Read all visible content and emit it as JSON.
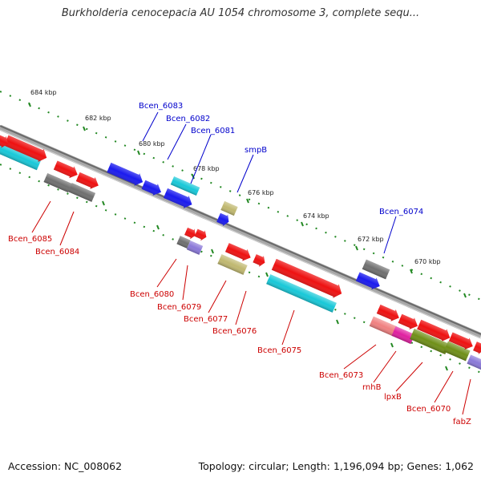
{
  "title": "Burkholderia cenocepacia AU 1054 chromosome 3, complete sequ...",
  "footer": {
    "accession": "Accession: NC_008062",
    "summary": "Topology: circular; Length: 1,196,094 bp; Genes: 1,062"
  },
  "colors": {
    "backbone": "#8a8a8a",
    "ruler": "#228822",
    "forward_label": "#0000cc",
    "reverse_label": "#cc0000",
    "red": "#ee1111",
    "blue": "#1a1aee",
    "gray": "#6f6f6f",
    "cyan": "#18c8d8",
    "olive": "#c0b870",
    "purple": "#8a78d8",
    "pink": "#f08080",
    "magenta": "#e020a0",
    "green": "#6f8f18"
  },
  "scale_labels": [
    "684 kbp",
    "682 kbp",
    "680 kbp",
    "678 kbp",
    "676 kbp",
    "674 kbp",
    "672 kbp",
    "670 kbp"
  ],
  "genes": {
    "labeled": [
      {
        "name": "Bcen_6083",
        "strand": "forward"
      },
      {
        "name": "Bcen_6082",
        "strand": "forward"
      },
      {
        "name": "Bcen_6081",
        "strand": "forward"
      },
      {
        "name": "smpB",
        "strand": "forward"
      },
      {
        "name": "Bcen_6074",
        "strand": "forward"
      },
      {
        "name": "Bcen_6085",
        "strand": "reverse"
      },
      {
        "name": "Bcen_6084",
        "strand": "reverse"
      },
      {
        "name": "Bcen_6080",
        "strand": "reverse"
      },
      {
        "name": "Bcen_6079",
        "strand": "reverse"
      },
      {
        "name": "Bcen_6077",
        "strand": "reverse"
      },
      {
        "name": "Bcen_6076",
        "strand": "reverse"
      },
      {
        "name": "Bcen_6075",
        "strand": "reverse"
      },
      {
        "name": "Bcen_6073",
        "strand": "reverse"
      },
      {
        "name": "rnhB",
        "strand": "reverse"
      },
      {
        "name": "lpxB",
        "strand": "reverse"
      },
      {
        "name": "Bcen_6070",
        "strand": "reverse"
      },
      {
        "name": "fabZ",
        "strand": "reverse"
      }
    ]
  }
}
